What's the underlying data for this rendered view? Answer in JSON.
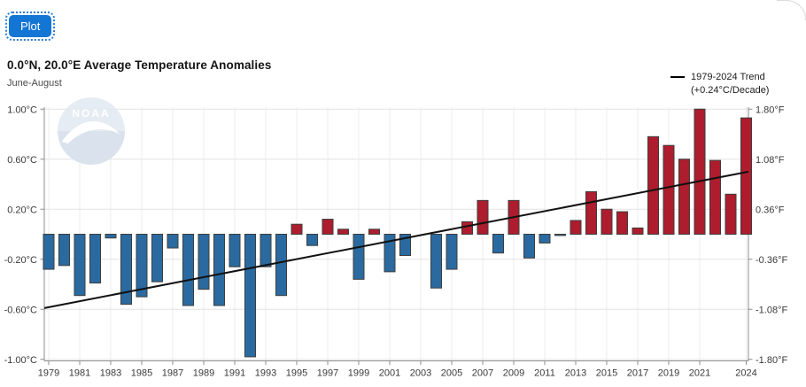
{
  "toolbar": {
    "plot_label": "Plot"
  },
  "header": {
    "title": "0.0°N, 20.0°E Average Temperature Anomalies",
    "subtitle": "June-August"
  },
  "legend": {
    "line1": "1979-2024 Trend",
    "line2": "(+0.24°C/Decade)"
  },
  "watermark": {
    "label": "NOAA"
  },
  "colors": {
    "positive_bar": "#ad1d2d",
    "negative_bar": "#2a6aa0",
    "bar_border": "#3d3d3d",
    "trend_line": "#111111",
    "grid_h": "#e4e4e4",
    "grid_v": "#ededed",
    "axis": "#8c8c8c",
    "tick_text": "#3a3a3a",
    "button_blue": "#1476d4"
  },
  "chart_data": {
    "type": "bar",
    "title": "0.0°N, 20.0°E Average Temperature Anomalies",
    "subtitle": "June-August",
    "ylabel_left_unit": "°C",
    "ylabel_right_unit": "°F",
    "ylim": [
      -1.0,
      1.0
    ],
    "grid": true,
    "legend_position": "top-right",
    "legend_entries": [
      "1979-2024 Trend",
      "(+0.24°C/Decade)"
    ],
    "x": [
      1979,
      1980,
      1981,
      1982,
      1983,
      1984,
      1985,
      1986,
      1987,
      1988,
      1989,
      1990,
      1991,
      1992,
      1993,
      1994,
      1995,
      1996,
      1997,
      1998,
      1999,
      2000,
      2001,
      2002,
      2003,
      2004,
      2005,
      2006,
      2007,
      2008,
      2009,
      2010,
      2011,
      2012,
      2013,
      2014,
      2015,
      2016,
      2017,
      2018,
      2019,
      2020,
      2021,
      2022,
      2023,
      2024
    ],
    "values": [
      -0.28,
      -0.25,
      -0.49,
      -0.39,
      -0.03,
      -0.56,
      -0.5,
      -0.38,
      -0.11,
      -0.57,
      -0.44,
      -0.57,
      -0.26,
      -0.98,
      -0.26,
      -0.49,
      0.08,
      -0.09,
      0.12,
      0.04,
      -0.36,
      0.04,
      -0.3,
      -0.17,
      0.0,
      -0.43,
      -0.28,
      0.1,
      0.27,
      -0.15,
      0.27,
      -0.19,
      -0.07,
      -0.01,
      0.11,
      0.34,
      0.2,
      0.18,
      0.05,
      0.78,
      0.71,
      0.6,
      1.0,
      0.59,
      0.32,
      0.93
    ],
    "ytick_values_c": [
      1.0,
      0.6,
      0.2,
      -0.2,
      -0.6,
      -1.0
    ],
    "ytick_labels_left": [
      "1.00°C",
      "0.60°C",
      "0.20°C",
      "-0.20°C",
      "-0.60°C",
      "-1.00°C"
    ],
    "ytick_labels_right": [
      "1.80°F",
      "1.08°F",
      "0.36°F",
      "-0.36°F",
      "-1.08°F",
      "-1.80°F"
    ],
    "xtick_labels": [
      "1979",
      "1981",
      "1983",
      "1985",
      "1987",
      "1989",
      "1991",
      "1993",
      "1995",
      "1997",
      "1999",
      "2001",
      "2003",
      "2005",
      "2007",
      "2009",
      "2011",
      "2013",
      "2015",
      "2017",
      "2019",
      "2021",
      "2024"
    ],
    "trend": {
      "label": "1979-2024 Trend",
      "rate_label": "(+0.24°C/Decade)",
      "rate_per_decade_c": 0.24,
      "start_year": 1979,
      "end_year": 2024,
      "start_value_c": -0.59,
      "end_value_c": 0.5
    }
  }
}
